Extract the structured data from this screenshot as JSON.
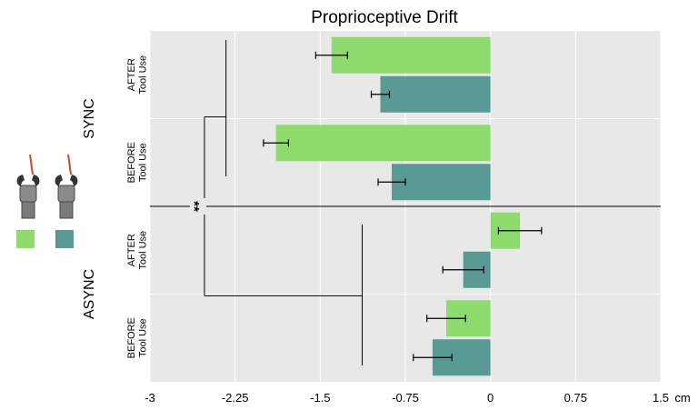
{
  "chart_data": {
    "type": "bar",
    "orientation": "horizontal",
    "title": "Proprioceptive Drift",
    "xlabel": "",
    "x_unit": "cm",
    "xlim": [
      -3,
      1.5
    ],
    "xticks": [
      "-3",
      "-2.25",
      "-1.5",
      "-0.75",
      "0",
      "0.75",
      "1.5"
    ],
    "xtick_values": [
      -3,
      -2.25,
      -1.5,
      -0.75,
      0,
      0.75,
      1.5
    ],
    "grid": true,
    "groups": [
      {
        "label": "SYNC",
        "conditions": [
          {
            "label_line1": "AFTER",
            "label_line2": "Tool Use",
            "bars": [
              {
                "series": 0,
                "value": -1.4,
                "error": 0.14
              },
              {
                "series": 1,
                "value": -0.97,
                "error": 0.08
              }
            ]
          },
          {
            "label_line1": "BEFORE",
            "label_line2": "Tool Use",
            "bars": [
              {
                "series": 0,
                "value": -1.89,
                "error": 0.11
              },
              {
                "series": 1,
                "value": -0.87,
                "error": 0.12
              }
            ]
          }
        ]
      },
      {
        "label": "ASYNC",
        "conditions": [
          {
            "label_line1": "AFTER",
            "label_line2": "Tool Use",
            "bars": [
              {
                "series": 0,
                "value": 0.26,
                "error": 0.19
              },
              {
                "series": 1,
                "value": -0.24,
                "error": 0.18
              }
            ]
          },
          {
            "label_line1": "BEFORE",
            "label_line2": "Tool Use",
            "bars": [
              {
                "series": 0,
                "value": -0.39,
                "error": 0.17
              },
              {
                "series": 1,
                "value": -0.51,
                "error": 0.17
              }
            ]
          }
        ]
      }
    ],
    "series": [
      {
        "color": "#8ddb6d",
        "legend": "light green swatch (hand with tool icon)"
      },
      {
        "color": "#5a9a94",
        "legend": "teal swatch (hand with tool icon)"
      }
    ],
    "significance": {
      "label": "**",
      "sync_bracket_x": -2.33,
      "async_bracket_x": -1.13,
      "outer_bracket_x": -2.52
    },
    "colors": {
      "background": "#e8e8e8",
      "grid": "#ffffff",
      "axis": "#000000"
    }
  }
}
